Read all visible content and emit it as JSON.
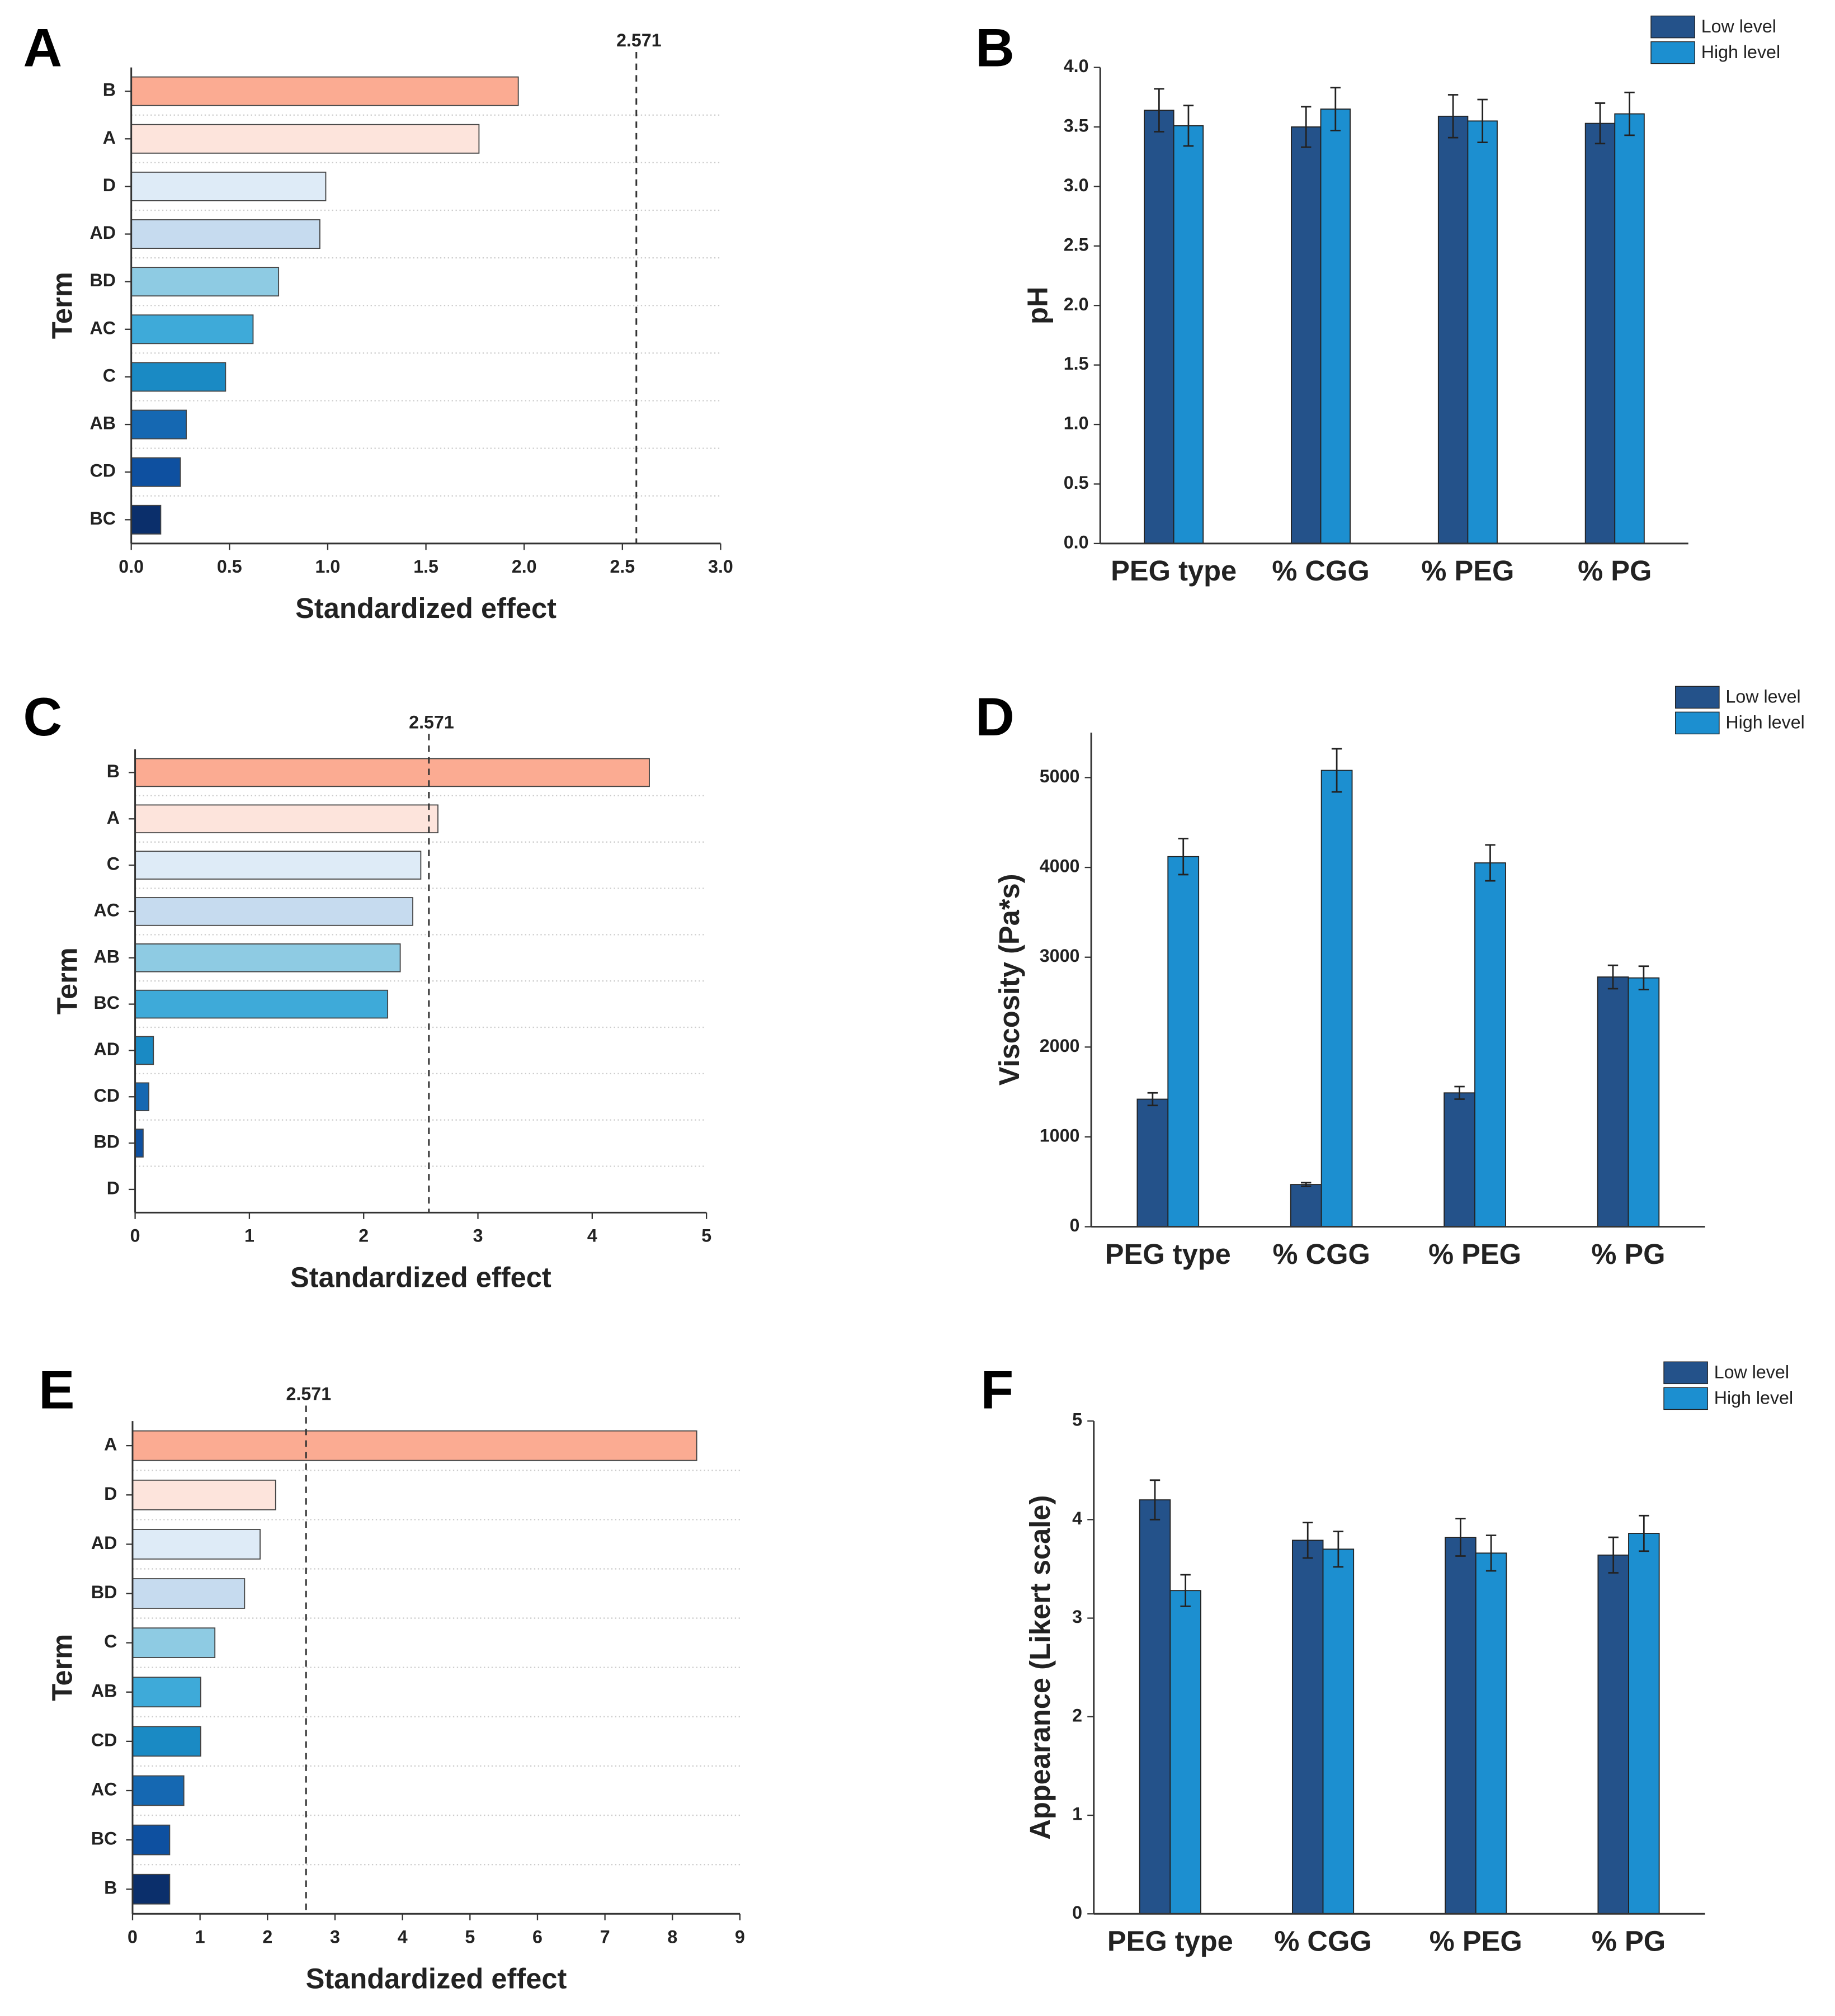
{
  "chart_data": [
    {
      "label": "A",
      "type": "bar",
      "orientation": "horizontal",
      "x_label": "Standardized effect",
      "y_label": "Term",
      "categories": [
        "B",
        "A",
        "D",
        "AD",
        "BD",
        "AC",
        "C",
        "AB",
        "CD",
        "BC"
      ],
      "values": [
        1.97,
        1.77,
        0.99,
        0.96,
        0.75,
        0.62,
        0.48,
        0.28,
        0.25,
        0.15
      ],
      "colors": [
        "#fbab92",
        "#fde4dc",
        "#deebf7",
        "#c6dbef",
        "#8ecbe3",
        "#3eaad9",
        "#1a8ac4",
        "#1568b2",
        "#0e50a0",
        "#0b2f6b"
      ],
      "xlim": [
        0,
        3
      ],
      "xticks": [
        {
          "value": 0,
          "label": "0.0"
        },
        {
          "value": 0.5,
          "label": "0.5"
        },
        {
          "value": 1,
          "label": "1.0"
        },
        {
          "value": 1.5,
          "label": "1.5"
        },
        {
          "value": 2,
          "label": "2.0"
        },
        {
          "value": 2.5,
          "label": "2.5"
        },
        {
          "value": 3,
          "label": "3.0"
        }
      ],
      "reference_line": 2.571
    },
    {
      "label": "B",
      "type": "bar",
      "orientation": "vertical",
      "y_label": "pH",
      "legend": "top-right",
      "categories": [
        "PEG type",
        "% CGG",
        "% PEG",
        "% PG"
      ],
      "series": [
        {
          "name": "Low level",
          "color": "#24528a",
          "values": [
            3.64,
            3.5,
            3.59,
            3.53
          ],
          "errors": [
            0.18,
            0.17,
            0.18,
            0.17
          ]
        },
        {
          "name": "High level",
          "color": "#1c8fd0",
          "values": [
            3.51,
            3.65,
            3.55,
            3.61
          ],
          "errors": [
            0.17,
            0.18,
            0.18,
            0.18
          ]
        }
      ],
      "ylim": [
        0,
        4
      ],
      "yticks": [
        {
          "value": 0,
          "label": "0.0"
        },
        {
          "value": 0.5,
          "label": "0.5"
        },
        {
          "value": 1,
          "label": "1.0"
        },
        {
          "value": 1.5,
          "label": "1.5"
        },
        {
          "value": 2,
          "label": "2.0"
        },
        {
          "value": 2.5,
          "label": "2.5"
        },
        {
          "value": 3,
          "label": "3.0"
        },
        {
          "value": 3.5,
          "label": "3.5"
        },
        {
          "value": 4,
          "label": "4.0"
        }
      ]
    },
    {
      "label": "C",
      "type": "bar",
      "orientation": "horizontal",
      "x_label": "Standardized effect",
      "y_label": "Term",
      "categories": [
        "B",
        "A",
        "C",
        "AC",
        "AB",
        "BC",
        "AD",
        "CD",
        "BD",
        "D"
      ],
      "values": [
        4.5,
        2.65,
        2.5,
        2.43,
        2.32,
        2.21,
        0.16,
        0.12,
        0.07,
        0
      ],
      "colors": [
        "#fbab92",
        "#fde4dc",
        "#deebf7",
        "#c6dbef",
        "#8ecbe3",
        "#3eaad9",
        "#1a8ac4",
        "#1568b2",
        "#0e50a0",
        "#0b2f6b"
      ],
      "xlim": [
        0,
        5
      ],
      "xticks": [
        0,
        1,
        2,
        3,
        4,
        5
      ],
      "reference_line": 2.571
    },
    {
      "label": "D",
      "type": "bar",
      "orientation": "vertical",
      "y_label": "Viscosity (Pa*s)",
      "legend": "top-right",
      "categories": [
        "PEG type",
        "% CGG",
        "% PEG",
        "% PG"
      ],
      "series": [
        {
          "name": "Low level",
          "color": "#24528a",
          "values": [
            1420,
            470,
            1490,
            2780
          ],
          "errors": [
            70,
            20,
            70,
            130
          ]
        },
        {
          "name": "High level",
          "color": "#1c8fd0",
          "values": [
            4120,
            5080,
            4050,
            2770
          ],
          "errors": [
            200,
            240,
            200,
            130
          ]
        }
      ],
      "ylim": [
        0,
        5500
      ],
      "yticks": [
        0,
        1000,
        2000,
        3000,
        4000,
        5000
      ]
    },
    {
      "label": "E",
      "type": "bar",
      "orientation": "horizontal",
      "x_label": "Standardized effect",
      "y_label": "Term",
      "categories": [
        "A",
        "D",
        "AD",
        "BD",
        "C",
        "AB",
        "CD",
        "AC",
        "BC",
        "B"
      ],
      "values": [
        8.36,
        2.12,
        1.89,
        1.66,
        1.22,
        1.01,
        1.01,
        0.76,
        0.55,
        0.55
      ],
      "colors": [
        "#fbab92",
        "#fde4dc",
        "#deebf7",
        "#c6dbef",
        "#8ecbe3",
        "#3eaad9",
        "#1a8ac4",
        "#1568b2",
        "#0e50a0",
        "#0b2f6b"
      ],
      "xlim": [
        0,
        9
      ],
      "xticks": [
        0,
        1,
        2,
        3,
        4,
        5,
        6,
        7,
        8,
        9
      ],
      "reference_line": 2.571
    },
    {
      "label": "F",
      "type": "bar",
      "orientation": "vertical",
      "y_label": "Appearance (Likert scale)",
      "legend": "top-right",
      "categories": [
        "PEG type",
        "% CGG",
        "% PEG",
        "% PG"
      ],
      "series": [
        {
          "name": "Low level",
          "color": "#24528a",
          "values": [
            4.2,
            3.79,
            3.82,
            3.64
          ],
          "errors": [
            0.2,
            0.18,
            0.19,
            0.18
          ]
        },
        {
          "name": "High level",
          "color": "#1c8fd0",
          "values": [
            3.28,
            3.7,
            3.66,
            3.86
          ],
          "errors": [
            0.16,
            0.18,
            0.18,
            0.18
          ]
        }
      ],
      "ylim": [
        0,
        5
      ],
      "yticks": [
        0,
        1,
        2,
        3,
        4,
        5
      ]
    }
  ]
}
